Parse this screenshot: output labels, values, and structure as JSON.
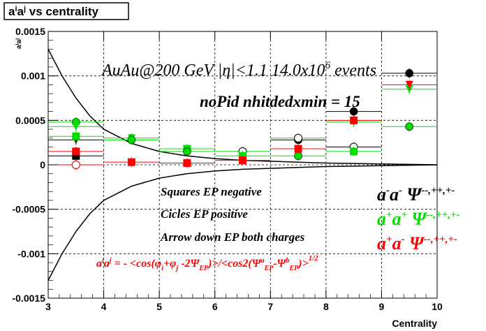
{
  "title": "aⁱaʲ vs centrality",
  "chart_data": {
    "type": "scatter",
    "title": "aⁱaʲ vs centrality",
    "xlabel": "Centrality",
    "ylabel": "aⁱaʲ",
    "xlim": [
      3,
      10
    ],
    "ylim": [
      -0.0015,
      0.0015
    ],
    "grid": true,
    "x_ticks": [
      "3",
      "4",
      "5",
      "6",
      "7",
      "8",
      "9",
      "10"
    ],
    "y_ticks": [
      "-0.0015",
      "-0.001",
      "-0.0005",
      "0",
      "0.0005",
      "0.001",
      "0.0015"
    ],
    "annotations": {
      "header": "AuAu@200 GeV |η|<1.1 14.0x10⁶ events",
      "subheader": "noPid nhitdedxmin = 15",
      "legend1": "Squares EP negative",
      "legend2": "Cicles EP positive",
      "legend3": "Arrow down EP both charges",
      "formula": "aⁱaʲ = - <cos(φi+φj-2ΨEP)>/<cos2(ΨᵃEP-ΨᵇEP)>^1/2",
      "cat_mm": "a⁻a⁻  Ψ⁻⁻,⁺⁺,⁺⁻",
      "cat_pp": "a⁺a⁺  Ψ⁻⁻,⁺⁺,⁺⁻",
      "cat_pm": "a⁺a⁻  Ψ⁻⁻,⁺⁺,⁺⁻"
    },
    "series": [
      {
        "name": "a⁻a⁻ (black)",
        "color": "#000000",
        "points": [
          {
            "x": 3.5,
            "y": 0.0001,
            "marker": "square"
          },
          {
            "x": 3.5,
            "y": 0.00028,
            "marker": "triangle-down"
          },
          {
            "x": 3.5,
            "y": 0.0,
            "marker": "circle-open"
          },
          {
            "x": 7.5,
            "y": 0.00028,
            "marker": "circle"
          },
          {
            "x": 8.5,
            "y": 0.0006,
            "marker": "circle"
          },
          {
            "x": 8.5,
            "y": 0.0002,
            "marker": "circle-open"
          },
          {
            "x": 9.5,
            "y": 0.00103,
            "marker": "circle"
          }
        ]
      },
      {
        "name": "a⁺a⁺ (green)",
        "color": "#00dd00",
        "points": [
          {
            "x": 3.5,
            "y": 0.00048,
            "marker": "circle"
          },
          {
            "x": 3.5,
            "y": 0.00043,
            "marker": "triangle-down"
          },
          {
            "x": 3.5,
            "y": 0.00032,
            "marker": "square"
          },
          {
            "x": 4.5,
            "y": 0.0003,
            "marker": "triangle-down"
          },
          {
            "x": 4.5,
            "y": 0.00028,
            "marker": "circle"
          },
          {
            "x": 5.5,
            "y": 0.00018,
            "marker": "square"
          },
          {
            "x": 5.5,
            "y": 0.00015,
            "marker": "circle"
          },
          {
            "x": 6.5,
            "y": 0.00015,
            "marker": "circle-open"
          },
          {
            "x": 6.5,
            "y": 0.0001,
            "marker": "square"
          },
          {
            "x": 7.5,
            "y": 0.0003,
            "marker": "circle-open"
          },
          {
            "x": 7.5,
            "y": 0.0001,
            "marker": "circle"
          },
          {
            "x": 8.5,
            "y": 0.00048,
            "marker": "triangle-down"
          },
          {
            "x": 8.5,
            "y": 0.00015,
            "marker": "square"
          },
          {
            "x": 9.5,
            "y": 0.00085,
            "marker": "triangle-down"
          },
          {
            "x": 9.5,
            "y": 0.00043,
            "marker": "circle"
          }
        ]
      },
      {
        "name": "a⁺a⁻ (red)",
        "color": "#ff0000",
        "points": [
          {
            "x": 3.5,
            "y": 0.00015,
            "marker": "square"
          },
          {
            "x": 3.5,
            "y": 0.0,
            "marker": "circle-open"
          },
          {
            "x": 4.5,
            "y": 3e-05,
            "marker": "square"
          },
          {
            "x": 5.5,
            "y": 2e-05,
            "marker": "square"
          },
          {
            "x": 6.5,
            "y": 5e-05,
            "marker": "square"
          },
          {
            "x": 7.5,
            "y": 0.00018,
            "marker": "square"
          },
          {
            "x": 8.5,
            "y": 0.0005,
            "marker": "square"
          },
          {
            "x": 9.5,
            "y": 0.0009,
            "marker": "triangle-down"
          }
        ]
      }
    ],
    "curves": [
      {
        "name": "upper envelope",
        "color": "#000000",
        "x": [
          3.0,
          3.25,
          3.5,
          3.75,
          4.0,
          4.5,
          5.0,
          5.5,
          6.0,
          6.5,
          7.0,
          7.5,
          8.0,
          9.0,
          10.0
        ],
        "y": [
          0.0013,
          0.001,
          0.00075,
          0.00055,
          0.0004,
          0.00024,
          0.00015,
          0.0001,
          7e-05,
          5e-05,
          4e-05,
          3e-05,
          2e-05,
          1e-05,
          0.0
        ]
      },
      {
        "name": "lower envelope",
        "color": "#000000",
        "x": [
          3.0,
          3.25,
          3.5,
          3.75,
          4.0,
          4.5,
          5.0,
          5.5,
          6.0,
          6.5,
          7.0,
          7.5,
          8.0,
          9.0,
          10.0
        ],
        "y": [
          -0.0013,
          -0.001,
          -0.00075,
          -0.00055,
          -0.0004,
          -0.00024,
          -0.00015,
          -0.0001,
          -7e-05,
          -5e-05,
          -4e-05,
          -3e-05,
          -2e-05,
          -1e-05,
          0.0
        ]
      }
    ]
  }
}
